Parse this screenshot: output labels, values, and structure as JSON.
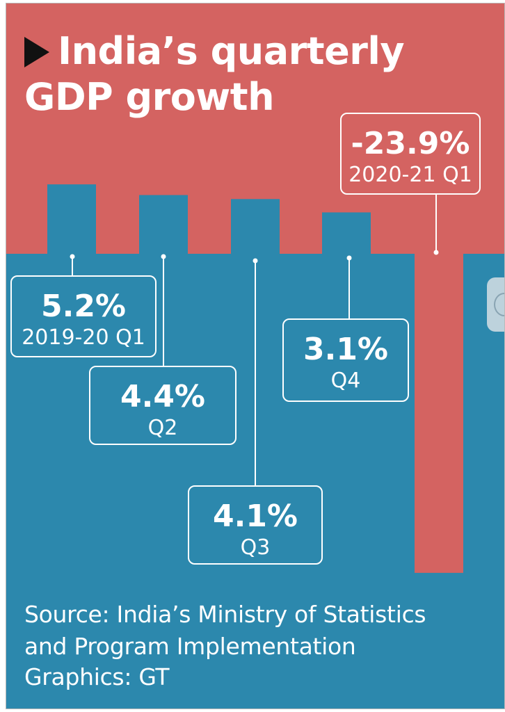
{
  "title_line1": "India’s quarterly",
  "title_line2": "GDP growth",
  "source_lines": [
    "Source: India’s Ministry of Statistics",
    "and Program Implementation",
    "Graphics: GT"
  ],
  "colors": {
    "top_red": "#d46361",
    "bottom_blue": "#2c88ad",
    "white": "#ffffff",
    "black": "#111111"
  },
  "chart_data": {
    "type": "bar",
    "title": "India’s quarterly GDP growth",
    "unit": "%",
    "categories": [
      "2019-20 Q1",
      "Q2",
      "Q3",
      "Q4",
      "2020-21 Q1"
    ],
    "values": [
      5.2,
      4.4,
      4.1,
      3.1,
      -23.9
    ],
    "value_labels": [
      "5.2%",
      "4.4%",
      "4.1%",
      "3.1%",
      "-23.9%"
    ],
    "ylim": [
      -25,
      6
    ],
    "grid": false,
    "legend": "none"
  }
}
